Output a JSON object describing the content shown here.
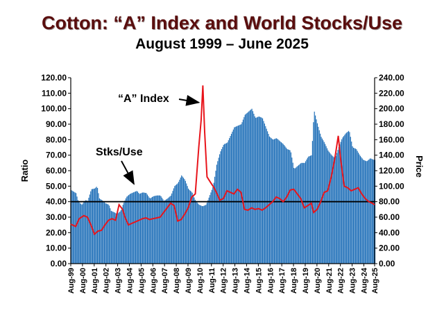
{
  "chart_data": {
    "type": "bar+line",
    "title": "Cotton:  “A” Index and World Stocks/Use",
    "subtitle": "August 1999 – June 2025",
    "ylabel_left": "Ratio",
    "ylabel_right": "Price",
    "ylim_left": [
      0,
      120
    ],
    "ylim_right": [
      0,
      240
    ],
    "y_ticks_left": [
      "0.00",
      "10.00",
      "20.00",
      "30.00",
      "40.00",
      "50.00",
      "60.00",
      "70.00",
      "80.00",
      "90.00",
      "100.00",
      "110.00",
      "120.00"
    ],
    "y_ticks_right": [
      "0.00",
      "20.00",
      "40.00",
      "60.00",
      "80.00",
      "100.00",
      "120.00",
      "140.00",
      "160.00",
      "180.00",
      "200.00",
      "220.00",
      "240.00"
    ],
    "x_range": [
      1999.58,
      2025.5
    ],
    "x_ticks": [
      {
        "label": "Aug-99",
        "x": 1999.58
      },
      {
        "label": "Aug-00",
        "x": 2000.58
      },
      {
        "label": "Aug-01",
        "x": 2001.58
      },
      {
        "label": "Aug-02",
        "x": 2002.58
      },
      {
        "label": "Aug-03",
        "x": 2003.58
      },
      {
        "label": "Aug-04",
        "x": 2004.58
      },
      {
        "label": "Aug-05",
        "x": 2005.58
      },
      {
        "label": "Aug-06",
        "x": 2006.58
      },
      {
        "label": "Aug-07",
        "x": 2007.58
      },
      {
        "label": "Aug-08",
        "x": 2008.58
      },
      {
        "label": "Aug-09",
        "x": 2009.58
      },
      {
        "label": "Aug-10",
        "x": 2010.58
      },
      {
        "label": "Aug-11",
        "x": 2011.58
      },
      {
        "label": "Aug-12",
        "x": 2012.58
      },
      {
        "label": "Aug-13",
        "x": 2013.58
      },
      {
        "label": "Aug-14",
        "x": 2014.58
      },
      {
        "label": "Aug-15",
        "x": 2015.58
      },
      {
        "label": "Aug-16",
        "x": 2016.58
      },
      {
        "label": "Aug-17",
        "x": 2017.58
      },
      {
        "label": "Aug-18",
        "x": 2018.58
      },
      {
        "label": "Aug-19",
        "x": 2019.58
      },
      {
        "label": "Aug-20",
        "x": 2020.58
      },
      {
        "label": "Aug-21",
        "x": 2021.58
      },
      {
        "label": "Aug-22",
        "x": 2022.58
      },
      {
        "label": "Aug-23",
        "x": 2023.58
      },
      {
        "label": "Aug-24",
        "x": 2024.58
      },
      {
        "label": "Aug-25",
        "x": 2025.58
      }
    ],
    "reference_line": {
      "axis": "left",
      "value": 40
    },
    "series": [
      {
        "name": "Stks/Use",
        "type": "bar",
        "axis": "left",
        "color": "#1f6fb8",
        "points": [
          [
            1999.58,
            47.5
          ],
          [
            2000.0,
            45.5
          ],
          [
            2000.2,
            40
          ],
          [
            2000.5,
            38
          ],
          [
            2000.8,
            41
          ],
          [
            2001.0,
            40.5
          ],
          [
            2001.3,
            48
          ],
          [
            2001.6,
            48.5
          ],
          [
            2001.8,
            50
          ],
          [
            2002.0,
            42
          ],
          [
            2002.3,
            40.5
          ],
          [
            2002.5,
            39
          ],
          [
            2002.8,
            38
          ],
          [
            2003.0,
            34
          ],
          [
            2003.3,
            33
          ],
          [
            2003.5,
            32
          ],
          [
            2003.8,
            34
          ],
          [
            2004.0,
            38
          ],
          [
            2004.3,
            43
          ],
          [
            2004.6,
            45
          ],
          [
            2004.9,
            46
          ],
          [
            2005.2,
            47
          ],
          [
            2005.4,
            45
          ],
          [
            2005.7,
            46
          ],
          [
            2006.0,
            45.5
          ],
          [
            2006.3,
            42
          ],
          [
            2006.6,
            43.5
          ],
          [
            2006.9,
            44
          ],
          [
            2007.2,
            44
          ],
          [
            2007.5,
            40.5
          ],
          [
            2007.8,
            42
          ],
          [
            2008.1,
            44
          ],
          [
            2008.4,
            50
          ],
          [
            2008.7,
            52
          ],
          [
            2009.0,
            57
          ],
          [
            2009.3,
            54
          ],
          [
            2009.6,
            48
          ],
          [
            2009.9,
            46
          ],
          [
            2010.2,
            40.5
          ],
          [
            2010.5,
            38
          ],
          [
            2010.8,
            37
          ],
          [
            2011.1,
            38
          ],
          [
            2011.4,
            44
          ],
          [
            2011.7,
            50
          ],
          [
            2012.0,
            64
          ],
          [
            2012.3,
            72
          ],
          [
            2012.6,
            77
          ],
          [
            2012.9,
            78
          ],
          [
            2013.2,
            83
          ],
          [
            2013.5,
            88
          ],
          [
            2013.8,
            89
          ],
          [
            2014.1,
            90
          ],
          [
            2014.4,
            96
          ],
          [
            2014.7,
            98
          ],
          [
            2015.0,
            100
          ],
          [
            2015.3,
            94
          ],
          [
            2015.6,
            95
          ],
          [
            2015.9,
            94
          ],
          [
            2016.2,
            88
          ],
          [
            2016.5,
            82
          ],
          [
            2016.8,
            80
          ],
          [
            2017.1,
            81
          ],
          [
            2017.4,
            79
          ],
          [
            2017.7,
            77
          ],
          [
            2018.0,
            74
          ],
          [
            2018.3,
            73
          ],
          [
            2018.6,
            61
          ],
          [
            2018.9,
            63
          ],
          [
            2019.2,
            65
          ],
          [
            2019.5,
            65
          ],
          [
            2019.8,
            69
          ],
          [
            2020.1,
            70
          ],
          [
            2020.3,
            99
          ],
          [
            2020.6,
            90
          ],
          [
            2020.9,
            82
          ],
          [
            2021.2,
            78
          ],
          [
            2021.5,
            73
          ],
          [
            2021.8,
            70
          ],
          [
            2022.1,
            68
          ],
          [
            2022.4,
            75
          ],
          [
            2022.7,
            81
          ],
          [
            2023.0,
            84
          ],
          [
            2023.3,
            86
          ],
          [
            2023.6,
            75
          ],
          [
            2023.9,
            74
          ],
          [
            2024.2,
            70
          ],
          [
            2024.5,
            67
          ],
          [
            2024.8,
            66
          ],
          [
            2025.1,
            68
          ],
          [
            2025.4,
            67
          ]
        ]
      },
      {
        "name": "“A” Index",
        "type": "line",
        "axis": "right",
        "color": "#e8141b",
        "points": [
          [
            1999.58,
            51
          ],
          [
            2000.0,
            48
          ],
          [
            2000.3,
            58
          ],
          [
            2000.7,
            62
          ],
          [
            2001.0,
            60
          ],
          [
            2001.3,
            50
          ],
          [
            2001.6,
            38
          ],
          [
            2001.9,
            42
          ],
          [
            2002.2,
            43
          ],
          [
            2002.5,
            50
          ],
          [
            2002.8,
            56
          ],
          [
            2003.1,
            58
          ],
          [
            2003.4,
            56
          ],
          [
            2003.7,
            76
          ],
          [
            2004.0,
            70
          ],
          [
            2004.2,
            60
          ],
          [
            2004.5,
            50
          ],
          [
            2004.8,
            52
          ],
          [
            2005.1,
            54
          ],
          [
            2005.4,
            56
          ],
          [
            2005.7,
            58
          ],
          [
            2006.0,
            59
          ],
          [
            2006.3,
            57
          ],
          [
            2006.6,
            58
          ],
          [
            2006.9,
            59
          ],
          [
            2007.2,
            60
          ],
          [
            2007.5,
            66
          ],
          [
            2007.8,
            72
          ],
          [
            2008.1,
            78
          ],
          [
            2008.4,
            75
          ],
          [
            2008.7,
            55
          ],
          [
            2009.0,
            57
          ],
          [
            2009.3,
            64
          ],
          [
            2009.6,
            72
          ],
          [
            2009.9,
            86
          ],
          [
            2010.2,
            90
          ],
          [
            2010.5,
            150
          ],
          [
            2010.7,
            185
          ],
          [
            2010.85,
            230
          ],
          [
            2011.0,
            170
          ],
          [
            2011.2,
            112
          ],
          [
            2011.5,
            105
          ],
          [
            2011.8,
            98
          ],
          [
            2012.0,
            92
          ],
          [
            2012.3,
            82
          ],
          [
            2012.6,
            84
          ],
          [
            2012.9,
            94
          ],
          [
            2013.2,
            92
          ],
          [
            2013.5,
            90
          ],
          [
            2013.8,
            96
          ],
          [
            2014.1,
            92
          ],
          [
            2014.4,
            70
          ],
          [
            2014.7,
            69
          ],
          [
            2015.0,
            72
          ],
          [
            2015.3,
            70
          ],
          [
            2015.6,
            71
          ],
          [
            2015.9,
            69
          ],
          [
            2016.2,
            72
          ],
          [
            2016.5,
            76
          ],
          [
            2016.8,
            80
          ],
          [
            2017.1,
            86
          ],
          [
            2017.4,
            84
          ],
          [
            2017.7,
            80
          ],
          [
            2018.0,
            86
          ],
          [
            2018.3,
            95
          ],
          [
            2018.6,
            96
          ],
          [
            2018.9,
            90
          ],
          [
            2019.2,
            84
          ],
          [
            2019.5,
            72
          ],
          [
            2019.8,
            75
          ],
          [
            2020.1,
            78
          ],
          [
            2020.3,
            66
          ],
          [
            2020.6,
            70
          ],
          [
            2020.9,
            80
          ],
          [
            2021.2,
            92
          ],
          [
            2021.5,
            94
          ],
          [
            2021.8,
            112
          ],
          [
            2022.1,
            135
          ],
          [
            2022.4,
            165
          ],
          [
            2022.6,
            135
          ],
          [
            2022.9,
            100
          ],
          [
            2023.2,
            98
          ],
          [
            2023.5,
            94
          ],
          [
            2023.8,
            96
          ],
          [
            2024.1,
            98
          ],
          [
            2024.4,
            90
          ],
          [
            2024.7,
            84
          ],
          [
            2025.0,
            80
          ],
          [
            2025.3,
            78
          ],
          [
            2025.5,
            76
          ]
        ]
      }
    ],
    "annotations": [
      {
        "text": "“A” Index",
        "target_x": 2010.85,
        "target_y_right": 208
      },
      {
        "text": "Stks/Use",
        "target_x": 2005.2,
        "target_y_left": 47
      }
    ]
  }
}
